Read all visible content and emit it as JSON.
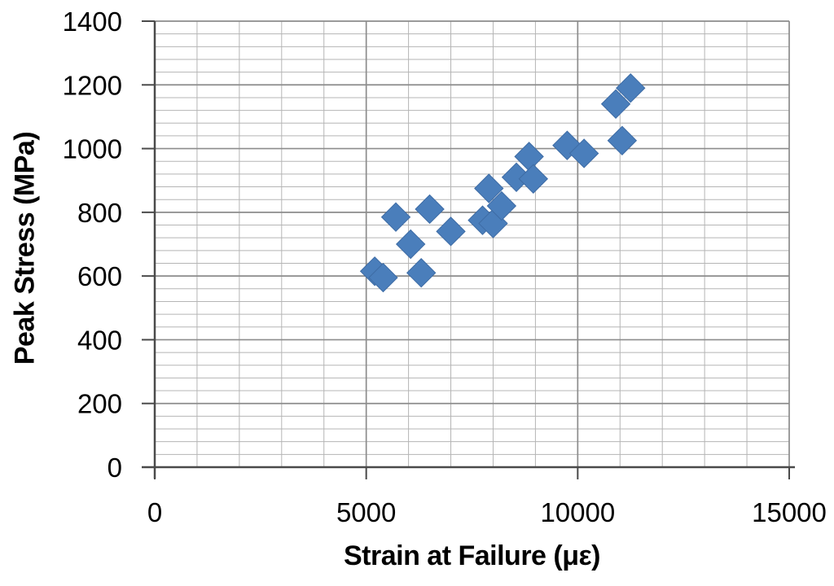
{
  "chart_data": {
    "type": "scatter",
    "title": "",
    "xlabel": "Strain at Failure (με)",
    "ylabel": "Peak Stress (MPa)",
    "xlim": [
      0,
      15000
    ],
    "ylim": [
      0,
      1400
    ],
    "x_major_ticks": [
      0,
      5000,
      10000,
      15000
    ],
    "y_major_ticks": [
      0,
      200,
      400,
      600,
      800,
      1000,
      1200,
      1400
    ],
    "x_minor_step": 1000,
    "y_minor_step": 40,
    "grid": "major and minor, both axes",
    "legend": "none",
    "marker": "diamond",
    "marker_color": "#4a7ebb",
    "marker_edge_color": "#3e6ca5",
    "minor_grid_color": "#b5b5b5",
    "major_grid_color": "#8c8c8c",
    "axis_color": "#4a4a4a",
    "points": [
      [
        5200,
        615
      ],
      [
        5400,
        595
      ],
      [
        5700,
        785
      ],
      [
        6050,
        700
      ],
      [
        6300,
        610
      ],
      [
        6500,
        810
      ],
      [
        7000,
        740
      ],
      [
        7750,
        775
      ],
      [
        7900,
        875
      ],
      [
        8000,
        765
      ],
      [
        8200,
        820
      ],
      [
        8550,
        910
      ],
      [
        8850,
        975
      ],
      [
        8950,
        905
      ],
      [
        9750,
        1010
      ],
      [
        10150,
        985
      ],
      [
        10900,
        1140
      ],
      [
        11050,
        1025
      ],
      [
        11250,
        1190
      ]
    ]
  }
}
